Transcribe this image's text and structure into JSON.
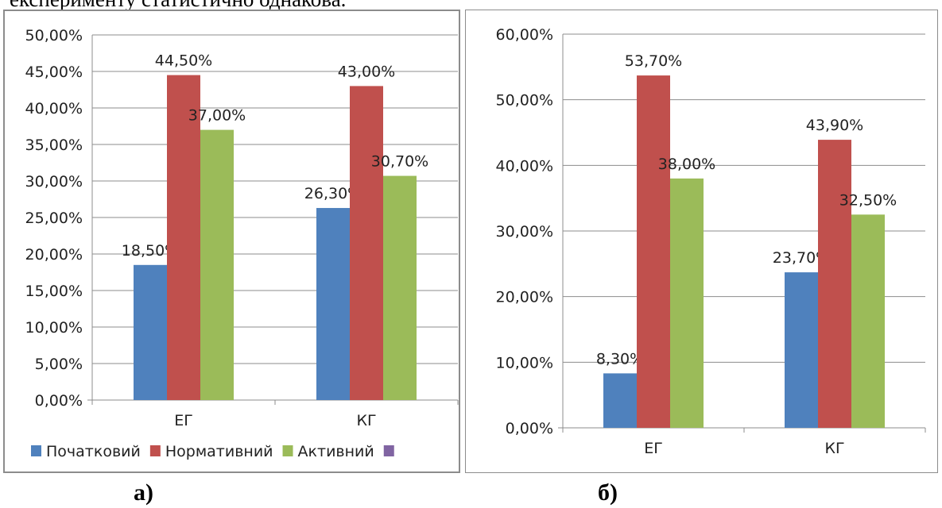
{
  "top_text": "експерименту статистично однакова.",
  "captions": {
    "a": "а)",
    "b": "б)"
  },
  "colors": {
    "series": [
      "#4f81bd",
      "#c0504d",
      "#9bbb59",
      "#8064a2"
    ],
    "grid": "#8c8c8c",
    "axis": "#8c8c8c"
  },
  "chart_data": [
    {
      "type": "bar",
      "categories": [
        "ЕГ",
        "КГ"
      ],
      "series": [
        {
          "name": "Початковий",
          "values": [
            18.5,
            26.3
          ],
          "labels": [
            "18,50%",
            "26,30%"
          ]
        },
        {
          "name": "Нормативний",
          "values": [
            44.5,
            43.0
          ],
          "labels": [
            "44,50%",
            "43,00%"
          ]
        },
        {
          "name": "Активний",
          "values": [
            37.0,
            30.7
          ],
          "labels": [
            "37,00%",
            "30,70%"
          ]
        }
      ],
      "legend": [
        "Початковий",
        "Нормативний",
        "Активний",
        ""
      ],
      "legend_position": "bottom",
      "ylim": [
        0,
        50
      ],
      "yticks": [
        0,
        5,
        10,
        15,
        20,
        25,
        30,
        35,
        40,
        45,
        50
      ],
      "ytick_labels": [
        "0,00%",
        "5,00%",
        "10,00%",
        "15,00%",
        "20,00%",
        "25,00%",
        "30,00%",
        "35,00%",
        "40,00%",
        "45,00%",
        "50,00%"
      ],
      "grid": true
    },
    {
      "type": "bar",
      "categories": [
        "ЕГ",
        "КГ"
      ],
      "series": [
        {
          "name": "Початковий",
          "values": [
            8.3,
            23.7
          ],
          "labels": [
            "8,30%",
            "23,70%"
          ]
        },
        {
          "name": "Нормативний",
          "values": [
            53.7,
            43.9
          ],
          "labels": [
            "53,70%",
            "43,90%"
          ]
        },
        {
          "name": "Активний",
          "values": [
            38.0,
            32.5
          ],
          "labels": [
            "38,00%",
            "32,50%"
          ]
        }
      ],
      "ylim": [
        0,
        60
      ],
      "yticks": [
        0,
        10,
        20,
        30,
        40,
        50,
        60
      ],
      "ytick_labels": [
        "0,00%",
        "10,00%",
        "20,00%",
        "30,00%",
        "40,00%",
        "50,00%",
        "60,00%"
      ],
      "grid": true
    }
  ]
}
